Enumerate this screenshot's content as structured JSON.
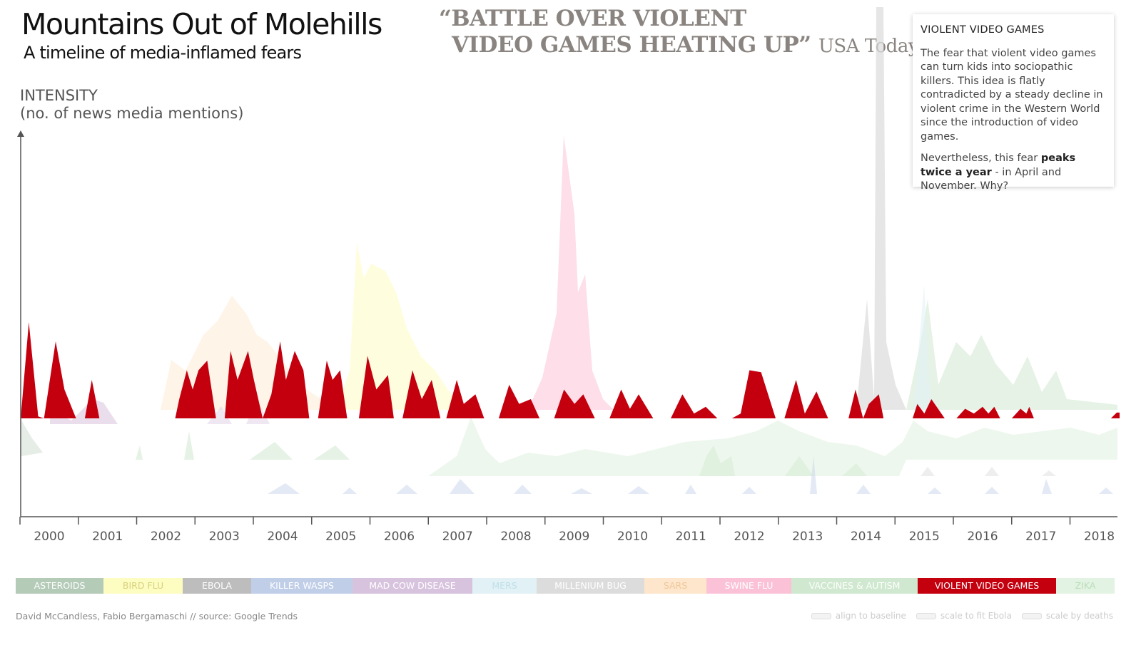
{
  "header": {
    "title": "Mountains Out of Molehills",
    "subtitle": "A timeline of media-inflamed fears"
  },
  "headline": {
    "line1": "“BATTLE OVER VIOLENT",
    "line2": "VIDEO GAMES HEATING UP”",
    "source": "USA Today"
  },
  "info_panel": {
    "title": "VIOLENT VIDEO GAMES",
    "p1": "The fear that violent video games can turn kids into sociopathic killers. This idea is flatly contradicted by a steady decline in violent crime in the Western World since the introduction of video games.",
    "p2_pre": "Nevertheless, this fear ",
    "p2_bold": "peaks twice a year",
    "p2_post": " - in April and November. Why?"
  },
  "legend": [
    {
      "label": "ASTEROIDS",
      "color": "#b4cbb8",
      "width": 123,
      "text": "#ffffff"
    },
    {
      "label": "BIRD FLU",
      "color": "#fdfdc2",
      "width": 111,
      "text": "#d8d17e"
    },
    {
      "label": "EBOLA",
      "color": "#bdbdbd",
      "width": 96,
      "text": "#ffffff"
    },
    {
      "label": "KILLER WASPS",
      "color": "#c0cee8",
      "width": 142,
      "text": "#ffffff"
    },
    {
      "label": "MAD COW DISEASE",
      "color": "#d8c3de",
      "width": 168,
      "text": "#ffffff"
    },
    {
      "label": "MERS",
      "color": "#e2f1f5",
      "width": 90,
      "text": "#bfe0ea"
    },
    {
      "label": "MILLENIUM BUG",
      "color": "#dcdcdc",
      "width": 151,
      "text": "#ffffff"
    },
    {
      "label": "SARS",
      "color": "#fde6cb",
      "width": 87,
      "text": "#f0c79a"
    },
    {
      "label": "SWINE FLU",
      "color": "#fbc2d7",
      "width": 119,
      "text": "#ffffff"
    },
    {
      "label": "VACCINES & AUTISM",
      "color": "#cfe8cf",
      "width": 177,
      "text": "#ffffff"
    },
    {
      "label": "VIOLENT VIDEO GAMES",
      "color": "#c4000f",
      "width": 194,
      "text": "#ffffff"
    },
    {
      "label": "ZIKA",
      "color": "#e3f3e3",
      "width": 82,
      "text": "#b9ddb9"
    }
  ],
  "footer": {
    "credit": "David McCandless, Fabio Bergamaschi // source: Google Trends",
    "controls": [
      "align to baseline",
      "scale to fit Ebola",
      "scale by deaths"
    ]
  },
  "chart_data": {
    "type": "area",
    "ylabel": "INTENSITY",
    "ylabel_sub": "(no. of news media mentions)",
    "xlabel": "",
    "x_ticks": [
      "2000",
      "2001",
      "2002",
      "2003",
      "2004",
      "2005",
      "2006",
      "2007",
      "2008",
      "2009",
      "2010",
      "2011",
      "2012",
      "2013",
      "2014",
      "2015",
      "2016",
      "2017",
      "2018"
    ],
    "xlim": [
      2000.0,
      2018.85
    ],
    "ylim": [
      0,
      300
    ],
    "highlighted_series": "VIOLENT VIDEO GAMES",
    "series": [
      {
        "name": "VIOLENT VIDEO GAMES",
        "color": "#c4000f",
        "points": [
          [
            2000.0,
            0
          ],
          [
            2000.14,
            100
          ],
          [
            2000.3,
            2
          ],
          [
            2000.4,
            0
          ],
          [
            2000.6,
            80
          ],
          [
            2000.75,
            30
          ],
          [
            2000.95,
            0
          ],
          [
            2001.1,
            0
          ],
          [
            2001.22,
            40
          ],
          [
            2001.35,
            0
          ],
          [
            2002.65,
            0
          ],
          [
            2002.72,
            20
          ],
          [
            2002.85,
            50
          ],
          [
            2002.95,
            30
          ],
          [
            2003.05,
            50
          ],
          [
            2003.2,
            60
          ],
          [
            2003.35,
            0
          ],
          [
            2003.5,
            0
          ],
          [
            2003.6,
            70
          ],
          [
            2003.72,
            40
          ],
          [
            2003.9,
            70
          ],
          [
            2004.0,
            40
          ],
          [
            2004.15,
            0
          ],
          [
            2004.3,
            25
          ],
          [
            2004.45,
            80
          ],
          [
            2004.55,
            40
          ],
          [
            2004.7,
            70
          ],
          [
            2004.85,
            50
          ],
          [
            2004.95,
            0
          ],
          [
            2005.1,
            0
          ],
          [
            2005.25,
            60
          ],
          [
            2005.35,
            40
          ],
          [
            2005.48,
            50
          ],
          [
            2005.6,
            0
          ],
          [
            2005.8,
            0
          ],
          [
            2005.95,
            65
          ],
          [
            2006.1,
            30
          ],
          [
            2006.3,
            45
          ],
          [
            2006.4,
            0
          ],
          [
            2006.55,
            0
          ],
          [
            2006.72,
            50
          ],
          [
            2006.88,
            20
          ],
          [
            2007.05,
            40
          ],
          [
            2007.2,
            0
          ],
          [
            2007.3,
            0
          ],
          [
            2007.48,
            40
          ],
          [
            2007.6,
            15
          ],
          [
            2007.8,
            25
          ],
          [
            2007.95,
            0
          ],
          [
            2008.2,
            0
          ],
          [
            2008.38,
            35
          ],
          [
            2008.55,
            15
          ],
          [
            2008.75,
            20
          ],
          [
            2008.9,
            0
          ],
          [
            2009.15,
            0
          ],
          [
            2009.32,
            30
          ],
          [
            2009.5,
            15
          ],
          [
            2009.65,
            25
          ],
          [
            2009.85,
            0
          ],
          [
            2010.1,
            0
          ],
          [
            2010.3,
            30
          ],
          [
            2010.45,
            10
          ],
          [
            2010.6,
            25
          ],
          [
            2010.85,
            0
          ],
          [
            2011.15,
            0
          ],
          [
            2011.35,
            25
          ],
          [
            2011.55,
            5
          ],
          [
            2011.75,
            12
          ],
          [
            2011.95,
            0
          ],
          [
            2012.2,
            0
          ],
          [
            2012.35,
            5
          ],
          [
            2012.5,
            50
          ],
          [
            2012.7,
            48
          ],
          [
            2012.95,
            0
          ],
          [
            2013.1,
            0
          ],
          [
            2013.3,
            40
          ],
          [
            2013.45,
            5
          ],
          [
            2013.65,
            28
          ],
          [
            2013.85,
            0
          ],
          [
            2014.2,
            0
          ],
          [
            2014.32,
            30
          ],
          [
            2014.45,
            0
          ],
          [
            2014.55,
            15
          ],
          [
            2014.72,
            25
          ],
          [
            2014.8,
            0
          ],
          [
            2015.3,
            0
          ],
          [
            2015.38,
            15
          ],
          [
            2015.5,
            5
          ],
          [
            2015.62,
            20
          ],
          [
            2015.85,
            0
          ],
          [
            2016.05,
            0
          ],
          [
            2016.2,
            10
          ],
          [
            2016.35,
            5
          ],
          [
            2016.5,
            12
          ],
          [
            2016.6,
            5
          ],
          [
            2016.7,
            12
          ],
          [
            2016.8,
            0
          ],
          [
            2017.0,
            0
          ],
          [
            2017.15,
            10
          ],
          [
            2017.25,
            5
          ],
          [
            2017.3,
            12
          ],
          [
            2017.38,
            0
          ],
          [
            2018.7,
            0
          ],
          [
            2018.8,
            6
          ],
          [
            2018.85,
            6
          ]
        ]
      }
    ]
  }
}
